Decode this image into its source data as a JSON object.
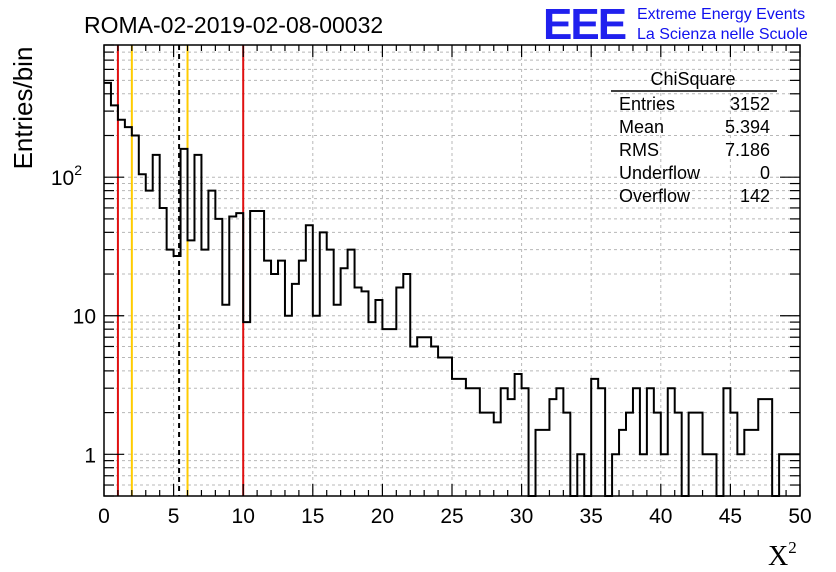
{
  "chart_data": {
    "type": "histogram",
    "title": "ROMA-02-2019-02-08-00032",
    "ylabel": "Entries/bin",
    "xlabel_base": "X",
    "xlabel_sup": "2",
    "xlim": [
      0,
      50
    ],
    "ylim": [
      0.5,
      900
    ],
    "y_scale": "log",
    "grid": true,
    "bin_width": 0.5,
    "x_ticks": [
      "0",
      "5",
      "10",
      "15",
      "20",
      "25",
      "30",
      "35",
      "40",
      "45",
      "50"
    ],
    "y_ticks": [
      {
        "value": 1,
        "label": "1"
      },
      {
        "value": 10,
        "label": "10"
      },
      {
        "value": 100,
        "label": "10",
        "sup": "2"
      }
    ],
    "counts": [
      480,
      330,
      260,
      230,
      200,
      105,
      80,
      145,
      60,
      30,
      27,
      160,
      35,
      145,
      30,
      80,
      50,
      12,
      52,
      55,
      9,
      57,
      57,
      25,
      20,
      25,
      10,
      17,
      25,
      45,
      10,
      40,
      30,
      12,
      22,
      30,
      16,
      15,
      9,
      13,
      8,
      8,
      16,
      20,
      6,
      7,
      7,
      6,
      5,
      5,
      3.5,
      3.5,
      3,
      3,
      2,
      2,
      1.7,
      3,
      2.5,
      3.8,
      3,
      0,
      1.5,
      1.5,
      2.5,
      3,
      2,
      0,
      1,
      0,
      3.5,
      3,
      0,
      1,
      1.5,
      2,
      3,
      1,
      3,
      2,
      1,
      3,
      2,
      0,
      2,
      2,
      1,
      1,
      0,
      3,
      2,
      1,
      1.5,
      1.5,
      2.5,
      2.5,
      0,
      1,
      1,
      1
    ],
    "vlines": [
      {
        "x": 1,
        "color": "#e01010",
        "style": "solid"
      },
      {
        "x": 2,
        "color": "#ffcc00",
        "style": "solid"
      },
      {
        "x": 5.394,
        "color": "#000000",
        "style": "dashed"
      },
      {
        "x": 6,
        "color": "#ffcc00",
        "style": "solid"
      },
      {
        "x": 10,
        "color": "#e01010",
        "style": "solid"
      }
    ],
    "stats": {
      "name": "ChiSquare",
      "rows": [
        {
          "label": "Entries",
          "value": "3152"
        },
        {
          "label": "Mean",
          "value": "5.394"
        },
        {
          "label": "RMS",
          "value": "7.186"
        },
        {
          "label": "Underflow",
          "value": "0"
        },
        {
          "label": "Overflow",
          "value": "142"
        }
      ]
    }
  },
  "logo": {
    "text": "EEE",
    "line1": "Extreme Energy Events",
    "line2": "La Scienza nelle Scuole",
    "color": "#2020ee"
  }
}
